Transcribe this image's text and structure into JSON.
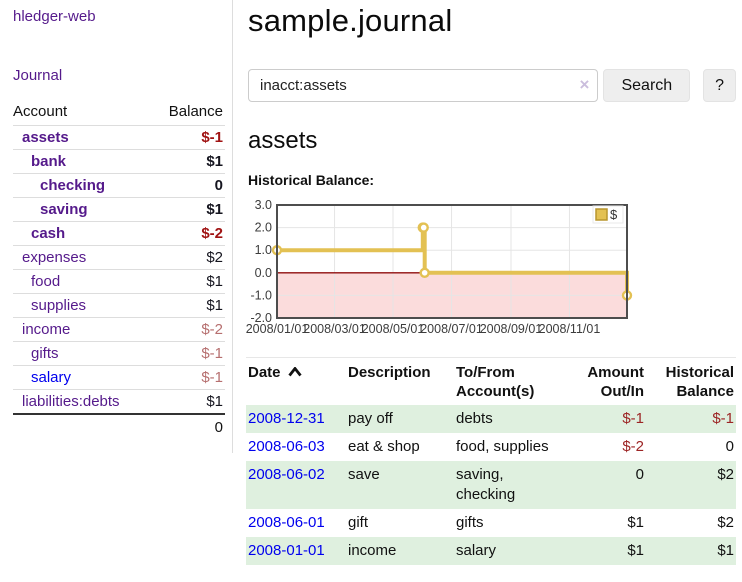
{
  "app": {
    "brand": "hledger-web",
    "nav_journal": "Journal"
  },
  "sidebar": {
    "headers": {
      "account": "Account",
      "balance": "Balance"
    },
    "accounts": [
      {
        "name": "assets",
        "level": 0,
        "bold": true,
        "name_style": "purple",
        "balance": "$-1",
        "balance_style": "red"
      },
      {
        "name": "bank",
        "level": 1,
        "bold": true,
        "name_style": "purple",
        "balance": "$1",
        "balance_style": "black"
      },
      {
        "name": "checking",
        "level": 2,
        "bold": true,
        "name_style": "purple",
        "balance": "0",
        "balance_style": "black"
      },
      {
        "name": "saving",
        "level": 2,
        "bold": true,
        "name_style": "purple",
        "balance": "$1",
        "balance_style": "black"
      },
      {
        "name": "cash",
        "level": 1,
        "bold": true,
        "name_style": "purple",
        "balance": "$-2",
        "balance_style": "red"
      },
      {
        "name": "expenses",
        "level": 0,
        "bold": false,
        "name_style": "purple",
        "balance": "$2",
        "balance_style": "black"
      },
      {
        "name": "food",
        "level": 1,
        "bold": false,
        "name_style": "purple",
        "balance": "$1",
        "balance_style": "black"
      },
      {
        "name": "supplies",
        "level": 1,
        "bold": false,
        "name_style": "purple",
        "balance": "$1",
        "balance_style": "black"
      },
      {
        "name": "income",
        "level": 0,
        "bold": false,
        "name_style": "purple",
        "balance": "$-2",
        "balance_style": "rose"
      },
      {
        "name": "gifts",
        "level": 1,
        "bold": false,
        "name_style": "purple",
        "balance": "$-1",
        "balance_style": "rose"
      },
      {
        "name": "salary",
        "level": 1,
        "bold": false,
        "name_style": "blue",
        "balance": "$-1",
        "balance_style": "rose"
      },
      {
        "name": "liabilities:debts",
        "level": 0,
        "bold": false,
        "name_style": "purple",
        "balance": "$1",
        "balance_style": "black"
      }
    ],
    "total": "0"
  },
  "header": {
    "title": "sample.journal"
  },
  "search": {
    "value": "inacct:assets",
    "clear_icon": "×",
    "button_label": "Search",
    "help_label": "?"
  },
  "account_page": {
    "title": "assets",
    "chart_label": "Historical Balance:"
  },
  "chart_data": {
    "type": "line",
    "step": true,
    "series": [
      {
        "name": "$",
        "points": [
          [
            "2008-01-01",
            1
          ],
          [
            "2008-06-01",
            2
          ],
          [
            "2008-06-02",
            2
          ],
          [
            "2008-06-03",
            0
          ],
          [
            "2008-12-31",
            -1
          ]
        ]
      }
    ],
    "ylim": [
      -2,
      3
    ],
    "yticks": [
      {
        "value": 3,
        "label": "3.0"
      },
      {
        "value": 2,
        "label": "2.0"
      },
      {
        "value": 1,
        "label": "1.0"
      },
      {
        "value": 0,
        "label": "0.0"
      },
      {
        "value": -1,
        "label": "-1.0"
      },
      {
        "value": -2,
        "label": "-2.0"
      }
    ],
    "xrange": [
      "2008-01-01",
      "2008-12-31"
    ],
    "xticks": [
      {
        "date": "2008-01-01",
        "label": "2008/01/01"
      },
      {
        "date": "2008-03-01",
        "label": "2008/03/01"
      },
      {
        "date": "2008-05-01",
        "label": "2008/05/01"
      },
      {
        "date": "2008-07-01",
        "label": "2008/07/01"
      },
      {
        "date": "2008-09-01",
        "label": "2008/09/01"
      },
      {
        "date": "2008-11-01",
        "label": "2008/11/01"
      }
    ],
    "legend": {
      "label": "$",
      "position": "top-right"
    },
    "colors": {
      "line": "#e3c153",
      "marker_fill": "#ffffff",
      "legend_border": "#b8962e",
      "negative_fill": "#fbdcdc",
      "zero_line": "#8f0d0d",
      "grid": "#e5e5e5",
      "border": "#4d4d4d"
    },
    "grid": true
  },
  "register": {
    "headers": {
      "date": "Date",
      "description": "Description",
      "tofrom": "To/From Account(s)",
      "amount": "Amount Out/In",
      "balance": "Historical Balance"
    },
    "rows": [
      {
        "date": "2008-12-31",
        "description": "pay off",
        "accounts": "debts",
        "amount": "$-1",
        "balance": "$-1",
        "amount_neg": true,
        "balance_neg": true
      },
      {
        "date": "2008-06-03",
        "description": "eat & shop",
        "accounts": "food, supplies",
        "amount": "$-2",
        "balance": "0",
        "amount_neg": true,
        "balance_neg": false
      },
      {
        "date": "2008-06-02",
        "description": "save",
        "accounts": "saving, checking",
        "amount": "0",
        "balance": "$2",
        "amount_neg": false,
        "balance_neg": false
      },
      {
        "date": "2008-06-01",
        "description": "gift",
        "accounts": "gifts",
        "amount": "$1",
        "balance": "$2",
        "amount_neg": false,
        "balance_neg": false
      },
      {
        "date": "2008-01-01",
        "description": "income",
        "accounts": "salary",
        "amount": "$1",
        "balance": "$1",
        "amount_neg": false,
        "balance_neg": false
      }
    ]
  }
}
